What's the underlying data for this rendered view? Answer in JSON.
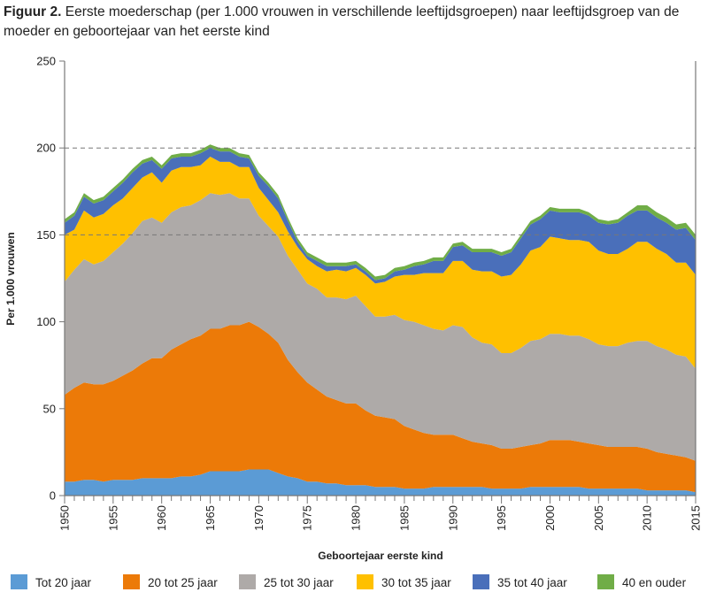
{
  "title": {
    "label": "Figuur 2.",
    "text": "Eerste moederschap (per 1.000 vrouwen in verschillende leeftijdsgroepen) naar leeftijdsgroep van de moeder en geboortejaar van het eerste kind"
  },
  "chart_data": {
    "type": "area",
    "stacked": true,
    "xlabel": "Geboortejaar eerste kind",
    "ylabel": "Per 1.000 vrouwen",
    "xlim": [
      1950,
      2015
    ],
    "ylim": [
      0,
      250
    ],
    "y_ticks": [
      0,
      50,
      100,
      150,
      200,
      250
    ],
    "x_ticks": [
      1950,
      1955,
      1960,
      1965,
      1970,
      1975,
      1980,
      1985,
      1990,
      1995,
      2000,
      2005,
      2010,
      2015
    ],
    "grid": "dashed horizontal at 150 and 200",
    "legend_position": "bottom",
    "x_start": 1950,
    "series": [
      {
        "name": "Tot 20 jaar",
        "color": "#5b9bd5",
        "values": [
          8,
          8,
          9,
          9,
          8,
          9,
          9,
          9,
          10,
          10,
          10,
          10,
          11,
          11,
          12,
          14,
          14,
          14,
          14,
          15,
          15,
          15,
          13,
          11,
          10,
          8,
          8,
          7,
          7,
          6,
          6,
          6,
          5,
          5,
          5,
          4,
          4,
          4,
          5,
          5,
          5,
          5,
          5,
          5,
          4,
          4,
          4,
          4,
          5,
          5,
          5,
          5,
          5,
          5,
          4,
          4,
          4,
          4,
          4,
          4,
          3,
          3,
          3,
          3,
          3,
          2
        ]
      },
      {
        "name": "20 tot 25 jaar",
        "color": "#ec7a08",
        "values": [
          50,
          54,
          56,
          55,
          56,
          57,
          60,
          63,
          66,
          69,
          69,
          74,
          76,
          79,
          80,
          82,
          82,
          84,
          84,
          85,
          82,
          78,
          75,
          67,
          61,
          57,
          53,
          50,
          48,
          47,
          47,
          43,
          41,
          40,
          39,
          36,
          34,
          32,
          30,
          30,
          30,
          28,
          26,
          25,
          25,
          23,
          23,
          24,
          24,
          25,
          27,
          27,
          27,
          26,
          26,
          25,
          24,
          24,
          24,
          24,
          24,
          22,
          21,
          20,
          19,
          18
        ]
      },
      {
        "name": "25 tot 30 jaar",
        "color": "#aeaaa8",
        "values": [
          65,
          68,
          71,
          69,
          71,
          74,
          76,
          79,
          82,
          81,
          78,
          79,
          79,
          77,
          78,
          78,
          77,
          76,
          73,
          71,
          64,
          62,
          61,
          60,
          59,
          57,
          58,
          57,
          59,
          60,
          62,
          60,
          57,
          58,
          60,
          61,
          62,
          62,
          61,
          60,
          63,
          64,
          60,
          58,
          58,
          55,
          55,
          57,
          60,
          60,
          61,
          61,
          60,
          61,
          60,
          58,
          58,
          58,
          60,
          61,
          62,
          61,
          60,
          58,
          58,
          53
        ]
      },
      {
        "name": "30 tot 35 jaar",
        "color": "#ffc000",
        "values": [
          27,
          23,
          28,
          27,
          27,
          27,
          26,
          26,
          25,
          26,
          23,
          24,
          23,
          22,
          20,
          21,
          19,
          18,
          18,
          18,
          16,
          15,
          14,
          14,
          13,
          14,
          13,
          15,
          16,
          16,
          16,
          18,
          19,
          20,
          22,
          26,
          27,
          30,
          32,
          33,
          37,
          38,
          39,
          41,
          42,
          44,
          45,
          48,
          52,
          53,
          56,
          55,
          55,
          55,
          56,
          54,
          53,
          53,
          54,
          57,
          57,
          56,
          55,
          53,
          54,
          54
        ]
      },
      {
        "name": "35 tot 40 jaar",
        "color": "#4a6fba",
        "values": [
          7,
          8,
          8,
          8,
          8,
          8,
          9,
          9,
          8,
          7,
          8,
          7,
          6,
          6,
          7,
          5,
          6,
          6,
          6,
          5,
          7,
          8,
          8,
          6,
          3,
          2,
          3,
          3,
          2,
          3,
          2,
          2,
          2,
          2,
          3,
          3,
          5,
          5,
          7,
          7,
          8,
          9,
          10,
          11,
          11,
          12,
          13,
          15,
          15,
          16,
          15,
          15,
          16,
          16,
          15,
          16,
          17,
          18,
          19,
          18,
          18,
          18,
          18,
          19,
          20,
          20
        ]
      },
      {
        "name": "40 en ouder",
        "color": "#70ad47",
        "values": [
          2,
          2,
          2,
          2,
          2,
          2,
          2,
          2,
          2,
          2,
          2,
          2,
          2,
          2,
          2,
          2,
          2,
          2,
          2,
          2,
          2,
          2,
          2,
          2,
          2,
          2,
          2,
          2,
          2,
          2,
          2,
          2,
          2,
          2,
          2,
          2,
          2,
          2,
          2,
          2,
          2,
          2,
          2,
          2,
          2,
          2,
          2,
          2,
          2,
          2,
          2,
          2,
          2,
          2,
          2,
          2,
          2,
          2,
          2,
          3,
          3,
          3,
          3,
          3,
          3,
          3
        ]
      }
    ]
  }
}
